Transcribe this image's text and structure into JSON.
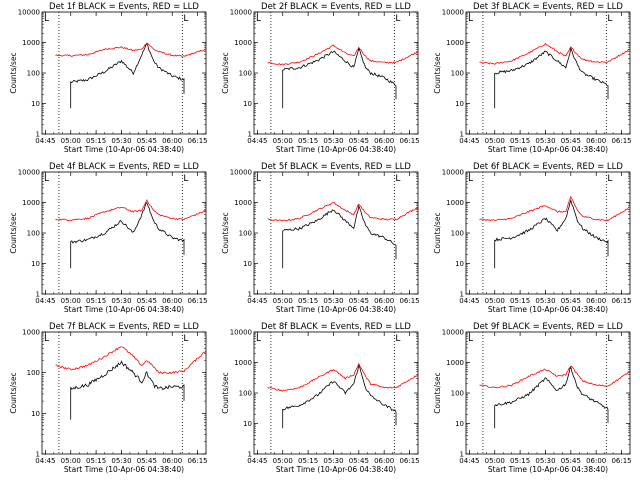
{
  "figure": {
    "xlabel": "Start Time (10-Apr-06 04:38:40)",
    "ylabel": "Counts/sec",
    "x_tick_labels": [
      "04:45",
      "05:00",
      "05:15",
      "05:30",
      "05:45",
      "06:00",
      "06:15"
    ],
    "y_tick_labels": [
      "1",
      "10",
      "100",
      "1000",
      "10000"
    ],
    "colors": {
      "events": "#000000",
      "lld": "#ff0000",
      "axes": "#000000"
    }
  },
  "chart_data": [
    {
      "type": "line",
      "title": "Det 1f BLACK = Events, RED = LLD",
      "xlabel": "Start Time (10-Apr-06 04:38:40)",
      "ylabel": "Counts/sec",
      "xlim": [
        "04:43",
        "06:20"
      ],
      "ylim": [
        1,
        10000
      ],
      "yscale": "log",
      "marker": "L",
      "vlines": [
        "04:53",
        "06:06"
      ],
      "x": [
        "04:51",
        "05:00",
        "05:10",
        "05:20",
        "05:30",
        "05:37",
        "05:42",
        "05:45",
        "05:49",
        "05:52",
        "06:00",
        "06:07",
        "06:20"
      ],
      "series": [
        {
          "name": "Events",
          "color": "#000000",
          "values": [
            null,
            50,
            60,
            110,
            250,
            100,
            400,
            900,
            250,
            150,
            80,
            60,
            null
          ]
        },
        {
          "name": "LLD",
          "color": "#ff0000",
          "values": [
            380,
            370,
            400,
            600,
            700,
            550,
            600,
            1000,
            600,
            500,
            380,
            350,
            600
          ]
        }
      ]
    },
    {
      "type": "line",
      "title": "Det 2f BLACK = Events, RED = LLD",
      "xlabel": "Start Time (10-Apr-06 04:38:40)",
      "ylabel": "Counts/sec",
      "xlim": [
        "04:43",
        "06:20"
      ],
      "ylim": [
        1,
        10000
      ],
      "yscale": "log",
      "marker": "L",
      "vlines": [
        "04:53",
        "06:06"
      ],
      "x": [
        "04:51",
        "05:00",
        "05:10",
        "05:20",
        "05:30",
        "05:37",
        "05:42",
        "05:45",
        "05:49",
        "05:52",
        "06:00",
        "06:07",
        "06:20"
      ],
      "series": [
        {
          "name": "Events",
          "color": "#000000",
          "values": [
            null,
            130,
            150,
            250,
            500,
            250,
            150,
            600,
            150,
            100,
            70,
            40,
            null
          ]
        },
        {
          "name": "LLD",
          "color": "#ff0000",
          "values": [
            220,
            190,
            230,
            400,
            800,
            450,
            350,
            700,
            350,
            250,
            220,
            220,
            500
          ]
        }
      ]
    },
    {
      "type": "line",
      "title": "Det 3f BLACK = Events, RED = LLD",
      "xlabel": "Start Time (10-Apr-06 04:38:40)",
      "ylabel": "Counts/sec",
      "xlim": [
        "04:43",
        "06:20"
      ],
      "ylim": [
        1,
        10000
      ],
      "yscale": "log",
      "marker": "L",
      "vlines": [
        "04:53",
        "06:06"
      ],
      "x": [
        "04:51",
        "05:00",
        "05:10",
        "05:20",
        "05:30",
        "05:37",
        "05:42",
        "05:45",
        "05:49",
        "05:52",
        "06:00",
        "06:07",
        "06:20"
      ],
      "series": [
        {
          "name": "Events",
          "color": "#000000",
          "values": [
            null,
            100,
            120,
            200,
            500,
            250,
            150,
            600,
            180,
            100,
            60,
            40,
            null
          ]
        },
        {
          "name": "LLD",
          "color": "#ff0000",
          "values": [
            220,
            200,
            250,
            450,
            900,
            500,
            350,
            700,
            400,
            280,
            230,
            230,
            600
          ]
        }
      ]
    },
    {
      "type": "line",
      "title": "Det 4f BLACK = Events, RED = LLD",
      "xlabel": "Start Time (10-Apr-06 04:38:40)",
      "ylabel": "Counts/sec",
      "xlim": [
        "04:43",
        "06:20"
      ],
      "ylim": [
        1,
        10000
      ],
      "yscale": "log",
      "marker": "L",
      "vlines": [
        "04:53",
        "06:06"
      ],
      "x": [
        "04:51",
        "05:00",
        "05:10",
        "05:20",
        "05:30",
        "05:37",
        "05:42",
        "05:45",
        "05:49",
        "05:52",
        "06:00",
        "06:07",
        "06:20"
      ],
      "series": [
        {
          "name": "Events",
          "color": "#000000",
          "values": [
            null,
            50,
            60,
            100,
            250,
            100,
            400,
            1000,
            250,
            140,
            70,
            55,
            null
          ]
        },
        {
          "name": "LLD",
          "color": "#ff0000",
          "values": [
            280,
            270,
            300,
            500,
            700,
            500,
            550,
            1200,
            550,
            400,
            300,
            280,
            550
          ]
        }
      ]
    },
    {
      "type": "line",
      "title": "Det 5f BLACK = Events, RED = LLD",
      "xlabel": "Start Time (10-Apr-06 04:38:40)",
      "ylabel": "Counts/sec",
      "xlim": [
        "04:43",
        "06:20"
      ],
      "ylim": [
        1,
        10000
      ],
      "yscale": "log",
      "marker": "L",
      "vlines": [
        "04:53",
        "06:06"
      ],
      "x": [
        "04:51",
        "05:00",
        "05:10",
        "05:20",
        "05:30",
        "05:37",
        "05:42",
        "05:45",
        "05:49",
        "05:52",
        "06:00",
        "06:07",
        "06:20"
      ],
      "series": [
        {
          "name": "Events",
          "color": "#000000",
          "values": [
            null,
            120,
            140,
            250,
            600,
            250,
            150,
            700,
            180,
            100,
            70,
            40,
            null
          ]
        },
        {
          "name": "LLD",
          "color": "#ff0000",
          "values": [
            280,
            250,
            300,
            550,
            1000,
            550,
            400,
            900,
            450,
            320,
            280,
            280,
            700
          ]
        }
      ]
    },
    {
      "type": "line",
      "title": "Det 6f BLACK = Events, RED = LLD",
      "xlabel": "Start Time (10-Apr-06 04:38:40)",
      "ylabel": "Counts/sec",
      "xlim": [
        "04:43",
        "06:20"
      ],
      "ylim": [
        1,
        10000
      ],
      "yscale": "log",
      "marker": "L",
      "vlines": [
        "04:53",
        "06:06"
      ],
      "x": [
        "04:51",
        "05:00",
        "05:10",
        "05:20",
        "05:30",
        "05:37",
        "05:42",
        "05:45",
        "05:49",
        "05:52",
        "06:00",
        "06:07",
        "06:20"
      ],
      "series": [
        {
          "name": "Events",
          "color": "#000000",
          "values": [
            null,
            60,
            70,
            120,
            300,
            120,
            300,
            1200,
            250,
            140,
            70,
            50,
            null
          ]
        },
        {
          "name": "LLD",
          "color": "#ff0000",
          "values": [
            280,
            260,
            300,
            500,
            800,
            500,
            500,
            1500,
            550,
            350,
            280,
            260,
            700
          ]
        }
      ]
    },
    {
      "type": "line",
      "title": "Det 7f BLACK = Events, RED = LLD",
      "xlabel": "Start Time (10-Apr-06 04:38:40)",
      "ylabel": "Counts/sec",
      "xlim": [
        "04:43",
        "06:20"
      ],
      "ylim": [
        1,
        1000
      ],
      "yscale": "log",
      "marker": "L",
      "vlines": [
        "04:53",
        "06:06"
      ],
      "x": [
        "04:51",
        "05:00",
        "05:10",
        "05:20",
        "05:30",
        "05:37",
        "05:42",
        "05:45",
        "05:49",
        "05:52",
        "06:00",
        "06:07",
        "06:20"
      ],
      "series": [
        {
          "name": "Events",
          "color": "#000000",
          "values": [
            null,
            40,
            50,
            90,
            180,
            100,
            60,
            100,
            50,
            40,
            45,
            45,
            null
          ]
        },
        {
          "name": "LLD",
          "color": "#ff0000",
          "values": [
            150,
            120,
            150,
            250,
            450,
            250,
            150,
            200,
            140,
            100,
            100,
            110,
            350
          ]
        }
      ]
    },
    {
      "type": "line",
      "title": "Det 8f BLACK = Events, RED = LLD",
      "xlabel": "Start Time (10-Apr-06 04:38:40)",
      "ylabel": "Counts/sec",
      "xlim": [
        "04:43",
        "06:20"
      ],
      "ylim": [
        1,
        10000
      ],
      "yscale": "log",
      "marker": "L",
      "vlines": [
        "04:53",
        "06:06"
      ],
      "x": [
        "04:51",
        "05:00",
        "05:10",
        "05:20",
        "05:30",
        "05:37",
        "05:42",
        "05:45",
        "05:49",
        "05:52",
        "06:00",
        "06:07",
        "06:20"
      ],
      "series": [
        {
          "name": "Events",
          "color": "#000000",
          "values": [
            null,
            30,
            40,
            80,
            250,
            100,
            200,
            800,
            150,
            80,
            40,
            25,
            null
          ]
        },
        {
          "name": "LLD",
          "color": "#ff0000",
          "values": [
            150,
            120,
            150,
            300,
            600,
            300,
            400,
            900,
            350,
            200,
            150,
            150,
            400
          ]
        }
      ]
    },
    {
      "type": "line",
      "title": "Det 9f BLACK = Events, RED = LLD",
      "xlabel": "Start Time (10-Apr-06 04:38:40)",
      "ylabel": "Counts/sec",
      "xlim": [
        "04:43",
        "06:20"
      ],
      "ylim": [
        1,
        10000
      ],
      "yscale": "log",
      "marker": "L",
      "vlines": [
        "04:53",
        "06:06"
      ],
      "x": [
        "04:51",
        "05:00",
        "05:10",
        "05:20",
        "05:30",
        "05:37",
        "05:42",
        "05:45",
        "05:49",
        "05:52",
        "06:00",
        "06:07",
        "06:20"
      ],
      "series": [
        {
          "name": "Events",
          "color": "#000000",
          "values": [
            null,
            40,
            50,
            90,
            300,
            120,
            200,
            700,
            150,
            90,
            50,
            30,
            null
          ]
        },
        {
          "name": "LLD",
          "color": "#ff0000",
          "values": [
            180,
            150,
            180,
            350,
            600,
            350,
            400,
            800,
            400,
            250,
            180,
            170,
            500
          ]
        }
      ]
    }
  ]
}
